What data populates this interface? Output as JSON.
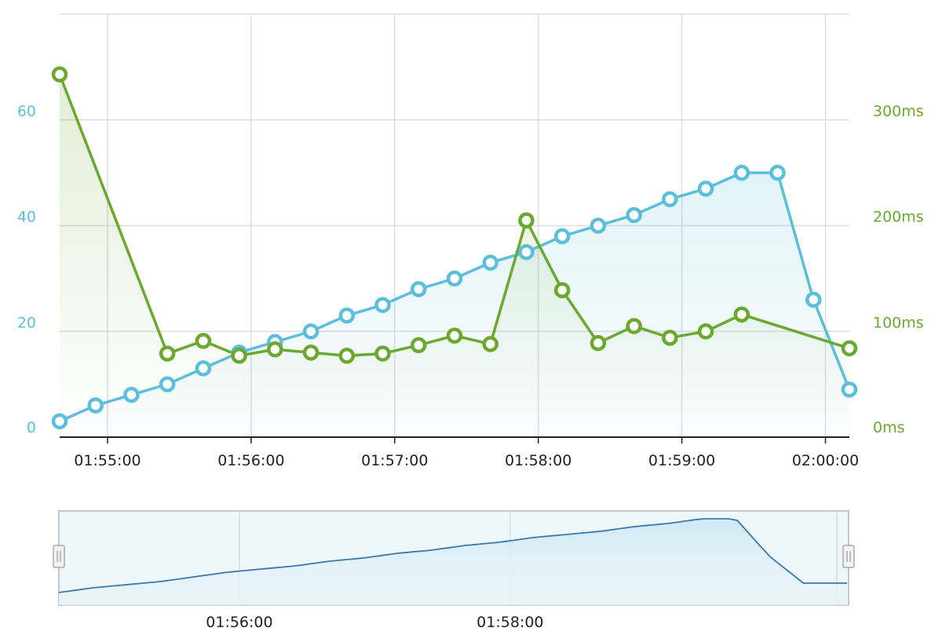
{
  "colors": {
    "count_series": "#5bbfdc",
    "latency_series": "#6aa82f",
    "grid": "#dddddd",
    "axis": "#222222",
    "navigator_fill": "#e3f2f8",
    "navigator_line": "#3a78b0",
    "navigator_border": "#c0c8cc",
    "handle_fill": "#f2f2f2",
    "handle_border": "#999999"
  },
  "chart_data": [
    {
      "type": "line",
      "x_format": "HH:MM:SS",
      "x": [
        "01:54:40",
        "01:54:55",
        "01:55:10",
        "01:55:25",
        "01:55:40",
        "01:55:55",
        "01:56:10",
        "01:56:25",
        "01:56:40",
        "01:56:55",
        "01:57:10",
        "01:57:25",
        "01:57:40",
        "01:57:55",
        "01:58:10",
        "01:58:25",
        "01:58:40",
        "01:58:55",
        "01:59:10",
        "01:59:25",
        "01:59:40",
        "01:59:55",
        "02:00:10"
      ],
      "x_ticks": [
        "01:55:00",
        "01:56:00",
        "01:57:00",
        "01:58:00",
        "01:59:00",
        "02:00:00"
      ],
      "y_left": {
        "range": [
          0,
          80
        ],
        "ticks": [
          "0",
          "20",
          "40",
          "60"
        ]
      },
      "y_right": {
        "range": [
          0,
          400
        ],
        "ticks": [
          "0ms",
          "100ms",
          "200ms",
          "300ms"
        ]
      },
      "series": [
        {
          "axis": "left",
          "style": "area",
          "color": "#5bbfdc",
          "values": [
            3,
            6,
            8,
            10,
            13,
            16,
            18,
            20,
            23,
            25,
            28,
            30,
            33,
            35,
            38,
            40,
            42,
            45,
            47,
            50,
            50,
            26,
            9
          ]
        },
        {
          "axis": "right",
          "style": "line",
          "color": "#6aa82f",
          "points": [
            {
              "x": "01:54:40",
              "y": 343
            },
            {
              "x": "01:55:25",
              "y": 79
            },
            {
              "x": "01:55:40",
              "y": 91
            },
            {
              "x": "01:55:55",
              "y": 77
            },
            {
              "x": "01:56:10",
              "y": 83
            },
            {
              "x": "01:56:25",
              "y": 80
            },
            {
              "x": "01:56:40",
              "y": 77
            },
            {
              "x": "01:56:55",
              "y": 79
            },
            {
              "x": "01:57:10",
              "y": 87
            },
            {
              "x": "01:57:25",
              "y": 96
            },
            {
              "x": "01:57:40",
              "y": 88
            },
            {
              "x": "01:57:55",
              "y": 205
            },
            {
              "x": "01:58:10",
              "y": 139
            },
            {
              "x": "01:58:25",
              "y": 89
            },
            {
              "x": "01:58:40",
              "y": 105
            },
            {
              "x": "01:58:55",
              "y": 94
            },
            {
              "x": "01:59:10",
              "y": 100
            },
            {
              "x": "01:59:25",
              "y": 116
            },
            {
              "x": "02:00:10",
              "y": 84
            }
          ]
        }
      ],
      "grid": true
    },
    {
      "type": "area",
      "role": "navigator",
      "x_ticks": [
        "01:56:00",
        "01:58:00"
      ],
      "values": [
        3,
        6,
        8,
        10,
        13,
        16,
        18,
        20,
        23,
        25,
        28,
        30,
        33,
        35,
        38,
        40,
        42,
        45,
        47,
        50,
        50,
        26,
        9
      ]
    }
  ]
}
